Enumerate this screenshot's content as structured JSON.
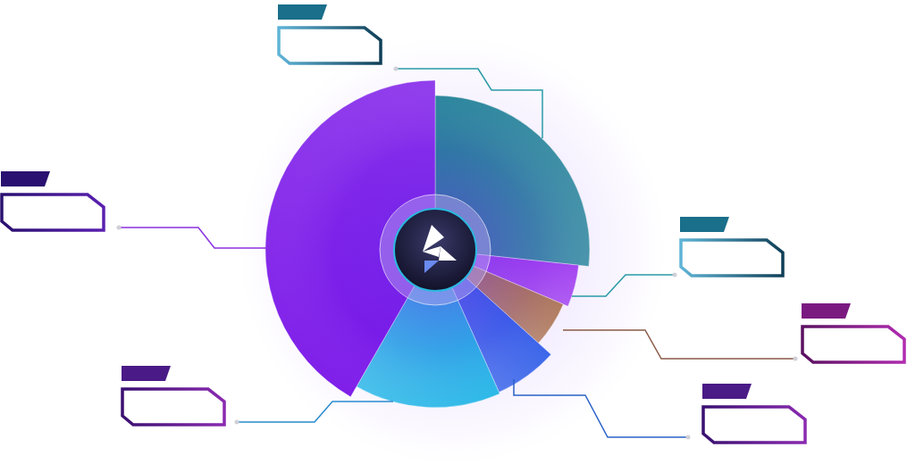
{
  "chart_data": {
    "type": "pie",
    "categories": [
      null,
      null,
      null,
      null,
      null,
      null
    ],
    "values": [
      26.7,
      4.7,
      5.3,
      6.6,
      15,
      41.7
    ],
    "radii": [
      91,
      85,
      82,
      92,
      93,
      100
    ],
    "colors": [
      "#1f8196",
      "#a13cf0",
      "#b0784e",
      "#2f5fe8",
      "#1fb6e6",
      "#7812e8"
    ]
  }
}
